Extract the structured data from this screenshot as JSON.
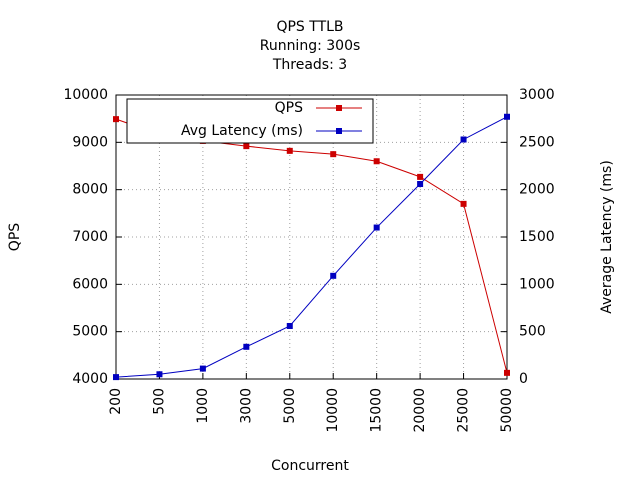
{
  "chart_data": {
    "type": "line",
    "title": "QPS   TTLB",
    "subtitle": [
      "Running: 300s",
      "Threads: 3"
    ],
    "x_label": "Concurrent",
    "y_label": "QPS",
    "y2_label": "Average Latency (ms)",
    "categories": [
      "200",
      "500",
      "1000",
      "3000",
      "5000",
      "10000",
      "15000",
      "20000",
      "25000",
      "50000"
    ],
    "series": [
      {
        "name": "QPS",
        "color": "#cc0000",
        "values": [
          9490,
          9170,
          9030,
          8920,
          8820,
          8750,
          8600,
          8270,
          7700,
          4130
        ]
      },
      {
        "name": "Avg Latency (ms)",
        "color": "#0000c0",
        "axis": "y2",
        "values": [
          20,
          50,
          110,
          340,
          560,
          1090,
          1600,
          2060,
          2530,
          2770
        ]
      }
    ],
    "ylim": [
      4000,
      10000
    ],
    "yticks": [
      4000,
      5000,
      6000,
      7000,
      8000,
      9000,
      10000
    ],
    "y2lim": [
      0,
      3000
    ],
    "y2ticks": [
      0,
      500,
      1000,
      1500,
      2000,
      2500,
      3000
    ],
    "grid": true,
    "legend": "top-left"
  }
}
